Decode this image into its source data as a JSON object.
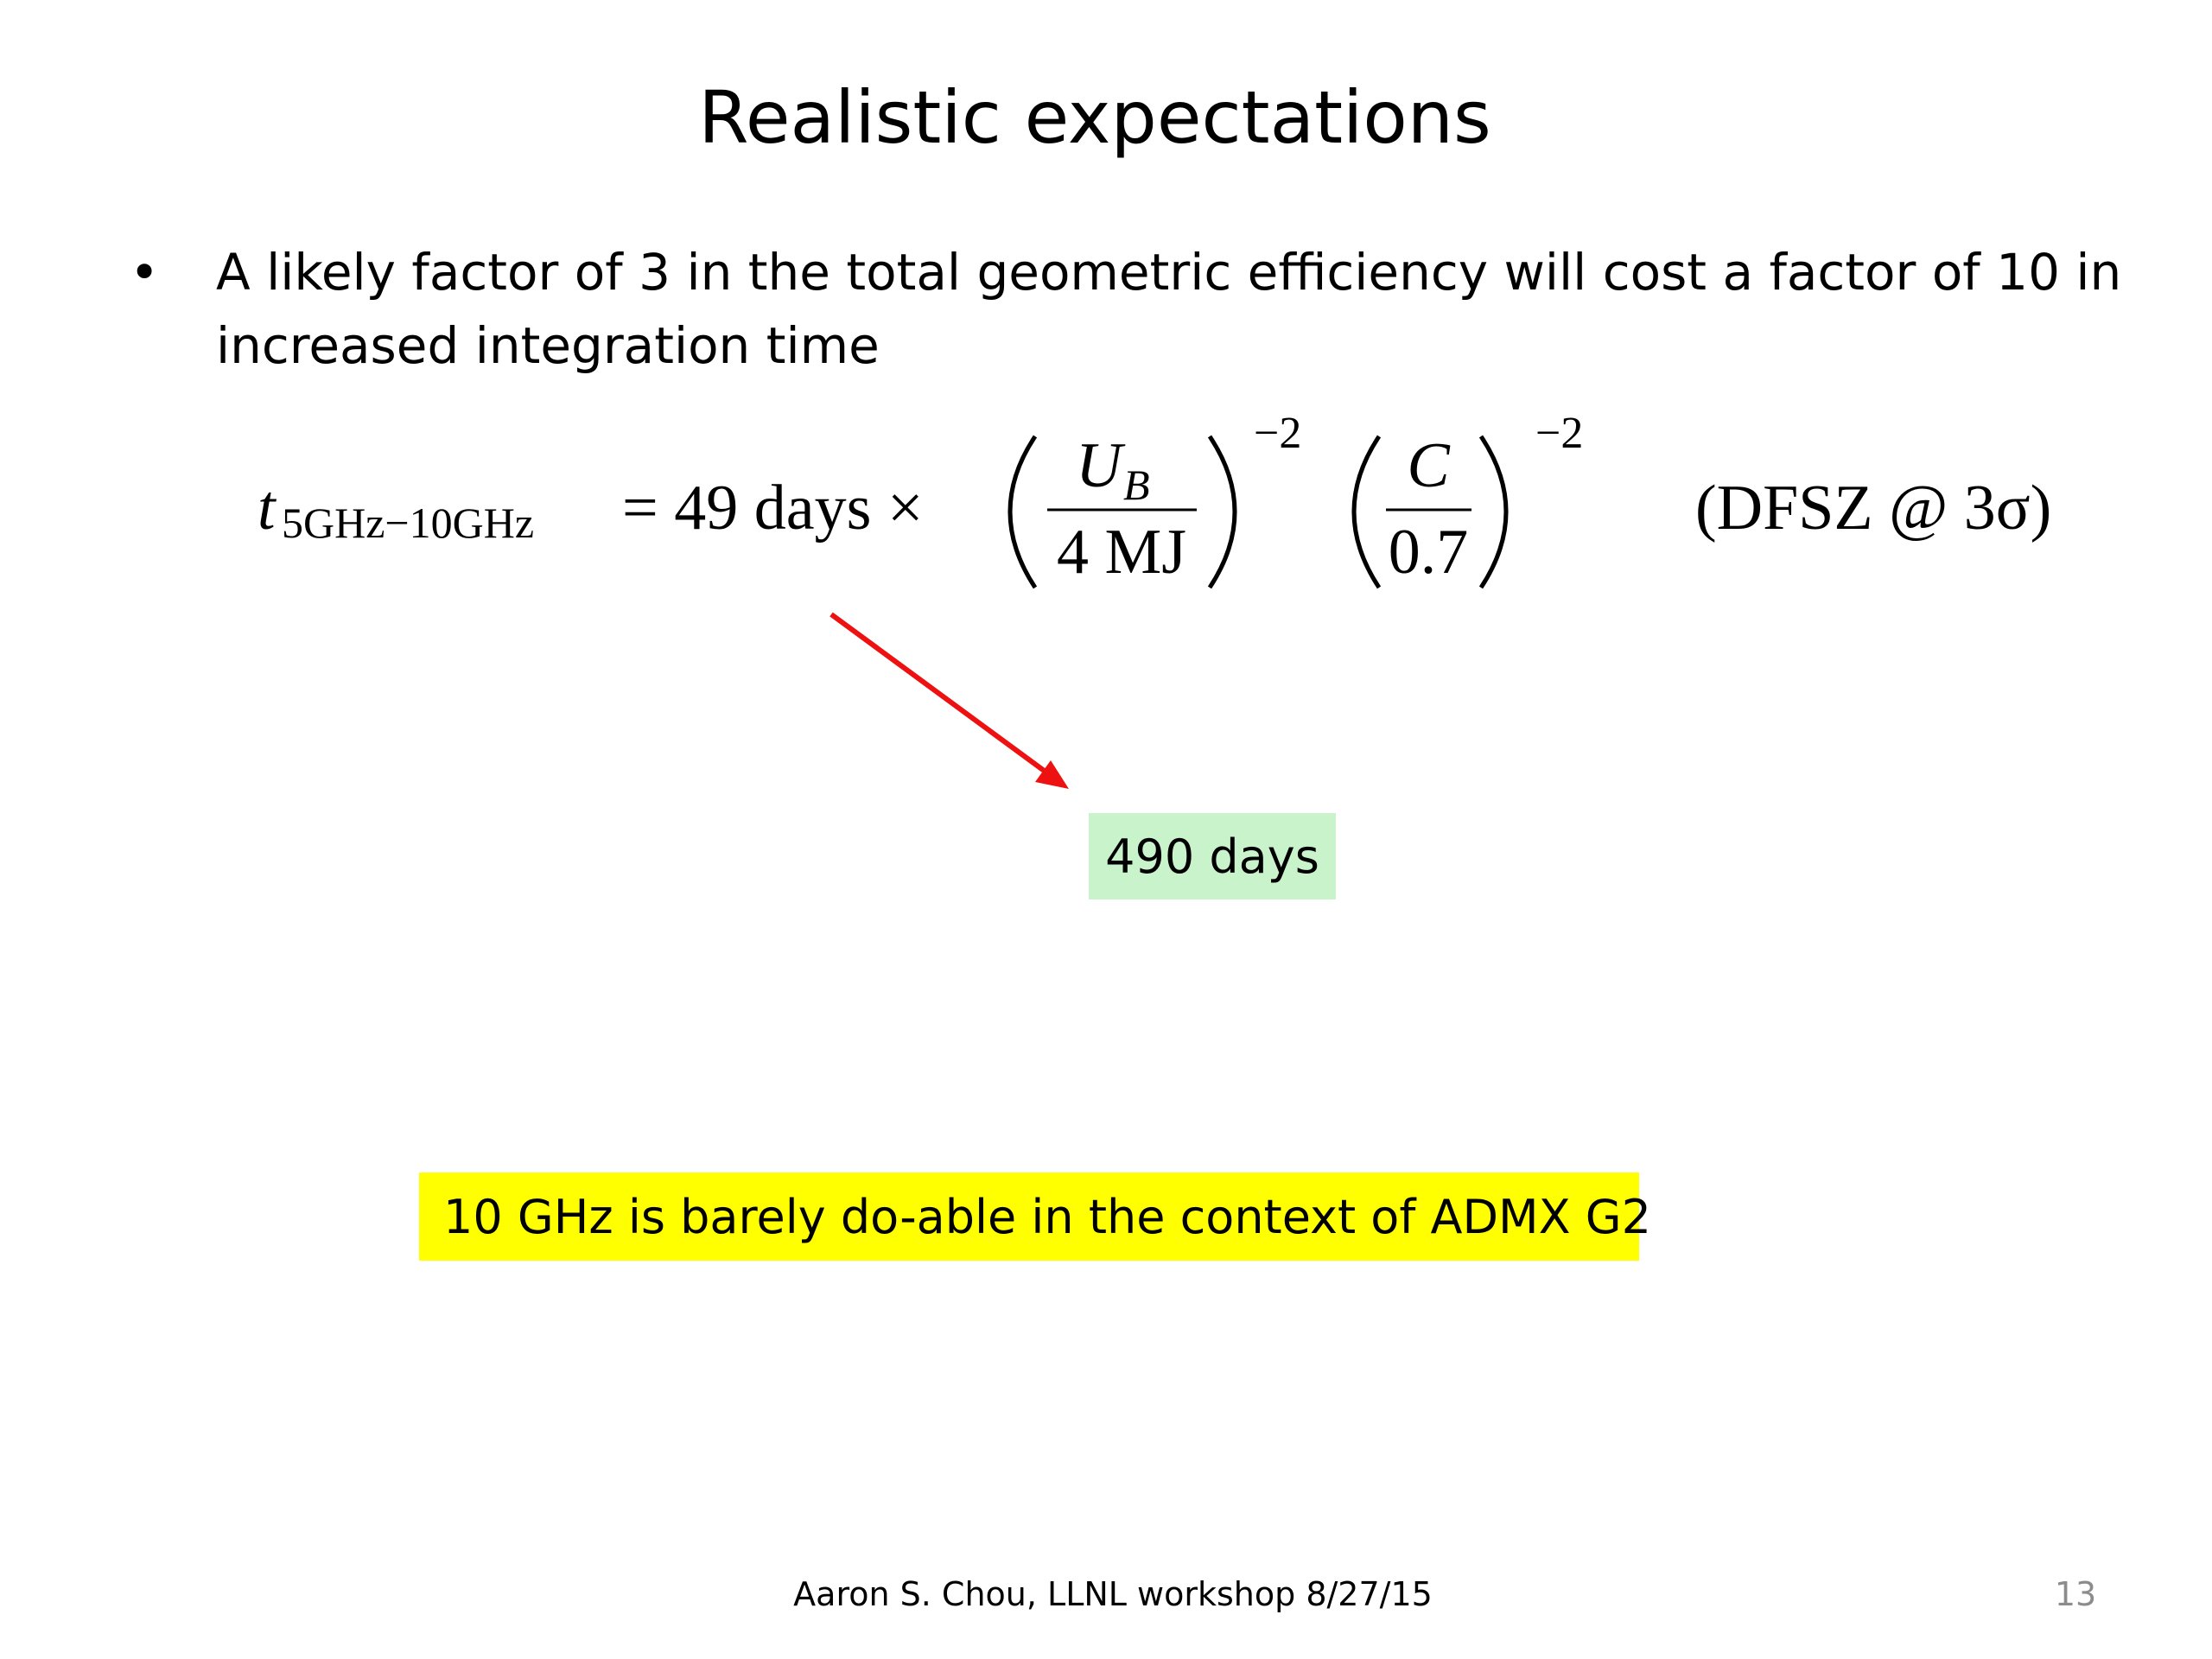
{
  "title": "Realistic expectations",
  "bullet": {
    "lines": [
      "A likely factor of 3 in the total geometric efficiency will cost a factor of 10 in",
      "increased integration time"
    ]
  },
  "equation": {
    "variable": "t",
    "subscript": "5GHz−10GHz",
    "rhs": "= 49 days ×",
    "fraction1": {
      "numerator": "U",
      "numerator_subscript": "B",
      "denominator": "4 MJ"
    },
    "exponent1": "−2",
    "fraction2": {
      "numerator": "C",
      "denominator": "0.7"
    },
    "exponent2": "−2",
    "note": "(DFSZ @ 3σ)"
  },
  "callout_result": "490 days",
  "callout_conclusion": "10 GHz is barely do-able in the context of ADMX G2",
  "footer": {
    "author": "Aaron S. Chou, LLNL workshop 8/27/15",
    "page_number": "13"
  }
}
